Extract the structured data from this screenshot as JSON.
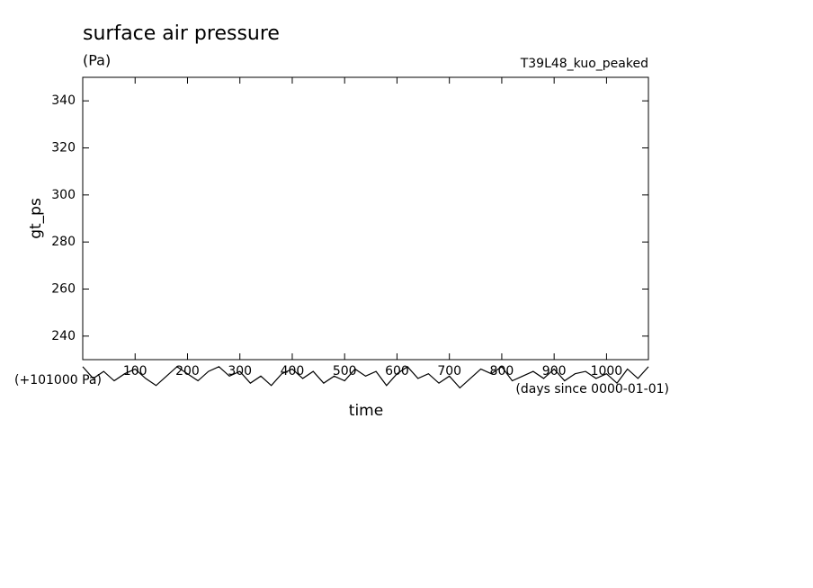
{
  "chart_data": {
    "type": "line",
    "title": "surface air pressure",
    "subtitle": "(Pa)",
    "annotation": "T39L48_kuo_peaked",
    "y_label": "gt_ps",
    "x_label": "time",
    "y_offset_label": "(+101000 Pa)",
    "x_units_label": "(days since 0000-01-01)",
    "xlim": [
      0,
      1080
    ],
    "xticks": [
      100,
      200,
      300,
      400,
      500,
      600,
      700,
      800,
      900,
      1000
    ],
    "ylim": [
      230,
      350
    ],
    "yticks": [
      240,
      260,
      280,
      300,
      320,
      340
    ],
    "grid": false,
    "x": [
      0,
      20,
      40,
      60,
      80,
      100,
      120,
      140,
      160,
      180,
      200,
      220,
      240,
      260,
      280,
      300,
      320,
      340,
      360,
      380,
      400,
      420,
      440,
      460,
      480,
      500,
      520,
      540,
      560,
      580,
      600,
      620,
      640,
      660,
      680,
      700,
      720,
      740,
      760,
      780,
      800,
      820,
      840,
      860,
      880,
      900,
      920,
      940,
      960,
      980,
      1000,
      1020,
      1040,
      1060,
      1080
    ],
    "series": [
      {
        "color": "#000000",
        "values": [
          227,
          222,
          225,
          221,
          224,
          226,
          222,
          219,
          223,
          227,
          224,
          221,
          225,
          227,
          223,
          225,
          220,
          223,
          219,
          224,
          226,
          222,
          225,
          220,
          223,
          221,
          226,
          223,
          225,
          219,
          224,
          227,
          222,
          224,
          220,
          223,
          218,
          222,
          226,
          224,
          227,
          221,
          223,
          225,
          222,
          226,
          221,
          224,
          225,
          222,
          224,
          220,
          226,
          222,
          227
        ]
      }
    ]
  }
}
